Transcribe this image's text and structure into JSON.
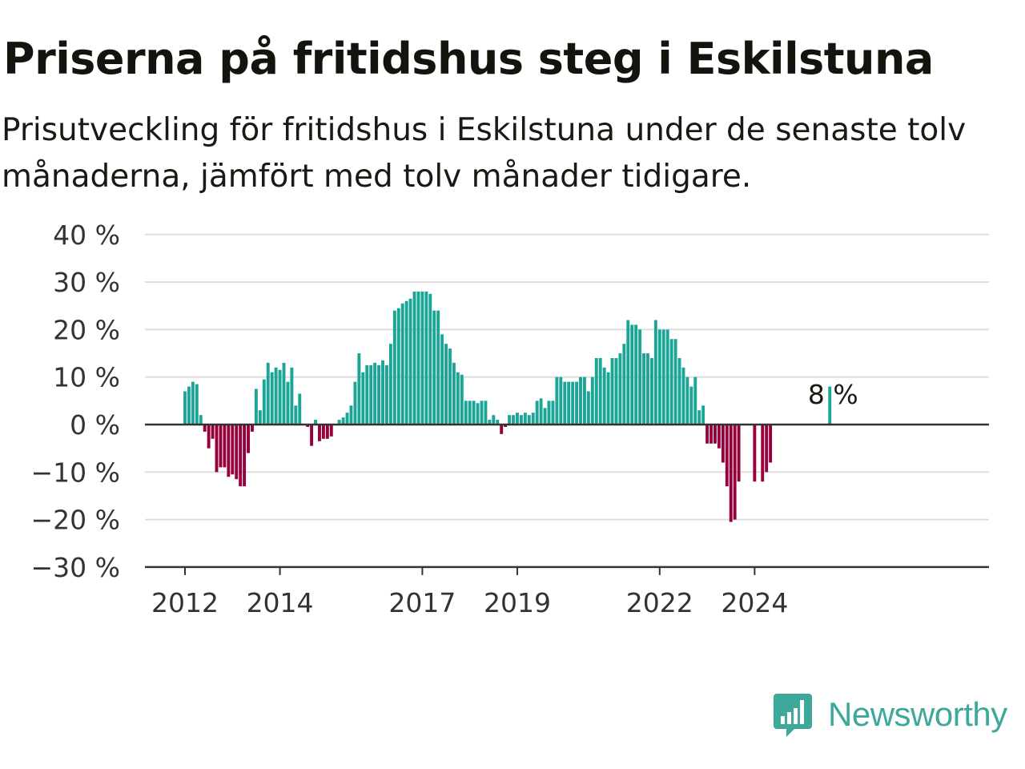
{
  "title": "Priserna på fritidshus steg i Eskilstuna",
  "subtitle": "Prisutveckling för fritidshus i Eskilstuna under de senaste tolv månaderna, jämfört med tolv månader tidigare.",
  "brand": {
    "name": "Newsworthy",
    "color": "#3ea89a"
  },
  "colors": {
    "positive": "#1aa597",
    "negative": "#96003c",
    "grid": "#dddddd",
    "zero_line": "#333333"
  },
  "chart_data": {
    "type": "bar",
    "x_start": "2012-01",
    "frequency": "monthly",
    "ylim": [
      -30,
      40
    ],
    "yticks": [
      -30,
      -20,
      -10,
      0,
      10,
      20,
      30,
      40
    ],
    "ytick_labels": [
      "−30 %",
      "−20 %",
      "−10 %",
      "0 %",
      "10 %",
      "20 %",
      "30 %",
      "40 %"
    ],
    "xtick_labels": [
      {
        "label": "2012",
        "month": "2012-01"
      },
      {
        "label": "2014",
        "month": "2014-01"
      },
      {
        "label": "2017",
        "month": "2017-01"
      },
      {
        "label": "2019",
        "month": "2019-01"
      },
      {
        "label": "2022",
        "month": "2022-01"
      },
      {
        "label": "2024",
        "month": "2024-01"
      }
    ],
    "annotation": {
      "text": "8 %",
      "month": "2025-06"
    },
    "grid": true,
    "legend": false,
    "values": [
      7,
      8,
      9,
      8.5,
      2,
      -1.5,
      -5,
      -3,
      -10,
      -9,
      -9,
      -11,
      -10.5,
      -11.5,
      -13,
      -13,
      -6,
      -1.5,
      7.5,
      3,
      9.5,
      13,
      11,
      12,
      11.5,
      13,
      9,
      12,
      4,
      6.5,
      null,
      -0.5,
      -4.5,
      1,
      -3.5,
      -3,
      -3,
      -2.5,
      null,
      1,
      1.5,
      2.5,
      4,
      9,
      15,
      11,
      12.5,
      12.5,
      13,
      12.5,
      13.5,
      12.5,
      17,
      24,
      24.5,
      25.5,
      26,
      26.5,
      28,
      28,
      28,
      28,
      27.5,
      24,
      24,
      19,
      17,
      16,
      13,
      11,
      10.5,
      5,
      5,
      5,
      4.5,
      5,
      5,
      1,
      2,
      1,
      -2,
      -0.5,
      2,
      2,
      2.5,
      2,
      2.5,
      2,
      2.5,
      5,
      5.5,
      3.5,
      5,
      5,
      10,
      10,
      9,
      9,
      9,
      9,
      10,
      10,
      7,
      10,
      14,
      14,
      12,
      11,
      14,
      14,
      15,
      17,
      22,
      21,
      21,
      20,
      15,
      15,
      14,
      22,
      20,
      20,
      20,
      18,
      18,
      14,
      12,
      10,
      8,
      10,
      3,
      4,
      -4,
      -4,
      -4,
      -5,
      -8,
      -13,
      -20.5,
      -20,
      -12,
      null,
      null,
      null,
      -12,
      null,
      -12,
      -10,
      -8,
      null,
      null,
      null,
      null,
      null,
      null,
      null,
      null,
      null,
      null,
      null,
      null,
      null,
      null,
      8
    ]
  }
}
